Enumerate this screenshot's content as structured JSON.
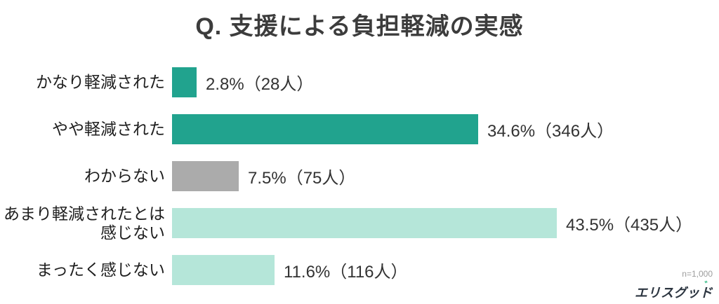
{
  "chart_data": {
    "type": "bar",
    "orientation": "horizontal",
    "title": "Q. 支援による負担軽減の実感",
    "categories": [
      "かなり軽減された",
      "やや軽減された",
      "わからない",
      "あまり軽減されたとは\n感じない",
      "まったく感じない"
    ],
    "values": [
      2.8,
      34.6,
      7.5,
      43.5,
      11.6
    ],
    "counts": [
      28,
      346,
      75,
      435,
      116
    ],
    "value_labels": [
      "2.8%（28人）",
      "34.6%（346人）",
      "7.5%（75人）",
      "43.5%（435人）",
      "11.6%（116人）"
    ],
    "colors": [
      "#21A38E",
      "#21A38E",
      "#ABABAB",
      "#B5E6D9",
      "#B5E6D9"
    ],
    "xlim": [
      0,
      50
    ],
    "grid": false,
    "legend": false,
    "sample_size_label": "n=1,000"
  },
  "footer": {
    "logo_text": "エリスグッド",
    "logo_accent_mark": "゛",
    "logo_color": "#2c3540",
    "logo_accent_color": "#3dbe8b"
  }
}
